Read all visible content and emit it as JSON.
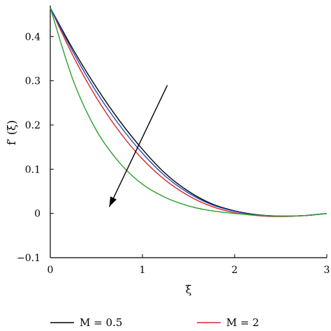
{
  "chart_data": {
    "type": "line",
    "xlabel": "ξ",
    "ylabel": "f′ (ξ)",
    "xlim": [
      0,
      3
    ],
    "ylim": [
      -0.1,
      0.47
    ],
    "x_ticks": [
      "0",
      "1",
      "2",
      "3"
    ],
    "y_ticks": [
      "−0.1",
      "0",
      "0.1",
      "0.2",
      "0.3",
      "0.4"
    ],
    "y_tick_values": [
      -0.1,
      0,
      0.1,
      0.2,
      0.3,
      0.4
    ],
    "x_tick_values": [
      0,
      1,
      2,
      3
    ],
    "grid": false,
    "legend_placement": "bottom",
    "series": [
      {
        "name": "M = 0.5",
        "color": "#000000",
        "x": [
          0,
          0.25,
          0.5,
          0.75,
          1.0,
          1.25,
          1.5,
          1.75,
          2.0,
          2.25,
          2.5,
          2.75,
          3.0
        ],
        "y": [
          0.465,
          0.37,
          0.285,
          0.21,
          0.145,
          0.09,
          0.05,
          0.022,
          0.006,
          -0.003,
          -0.006,
          -0.005,
          0.0
        ]
      },
      {
        "name": "M = 2",
        "color": "#d62728",
        "x": [
          0,
          0.25,
          0.5,
          0.75,
          1.0,
          1.25,
          1.5,
          1.75,
          2.0,
          2.25,
          2.5,
          2.75,
          3.0
        ],
        "y": [
          0.465,
          0.355,
          0.262,
          0.185,
          0.123,
          0.075,
          0.04,
          0.016,
          0.002,
          -0.005,
          -0.007,
          -0.005,
          0.0
        ]
      },
      {
        "color": "#1f4fbf",
        "x": [
          0,
          0.25,
          0.5,
          0.75,
          1.0,
          1.25,
          1.5,
          1.75,
          2.0,
          2.25,
          2.5,
          2.75,
          3.0
        ],
        "y": [
          0.465,
          0.364,
          0.275,
          0.2,
          0.136,
          0.084,
          0.046,
          0.02,
          0.005,
          -0.004,
          -0.006,
          -0.005,
          0.0
        ]
      },
      {
        "color": "#2ca02c",
        "x": [
          0,
          0.25,
          0.5,
          0.75,
          1.0,
          1.25,
          1.5,
          1.75,
          2.0,
          2.25,
          2.5,
          2.75,
          3.0
        ],
        "y": [
          0.465,
          0.3,
          0.188,
          0.115,
          0.066,
          0.036,
          0.017,
          0.006,
          0.0,
          -0.004,
          -0.006,
          -0.005,
          0.0
        ]
      }
    ],
    "arrow": {
      "from": [
        1.27,
        0.29
      ],
      "to": [
        0.64,
        0.015
      ]
    }
  }
}
